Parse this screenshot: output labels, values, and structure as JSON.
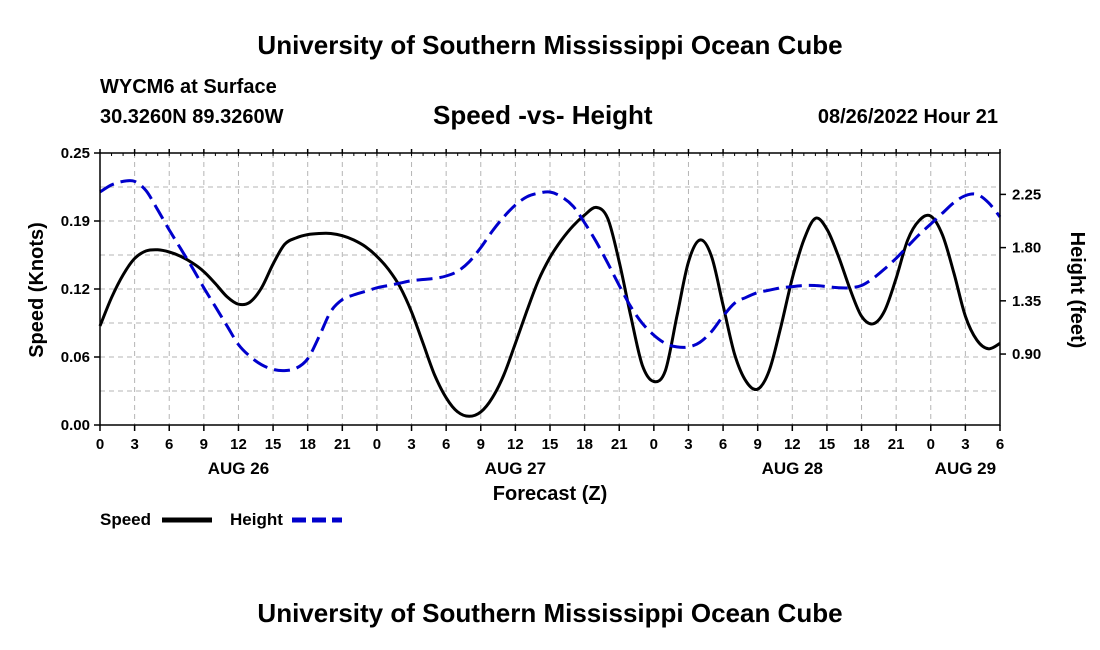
{
  "header": {
    "title": "University of Southern Mississippi Ocean Cube",
    "station": "WYCM6 at Surface",
    "coordinates": "30.3260N  89.3260W",
    "timestamp": "08/26/2022 Hour 21"
  },
  "footer": {
    "title": "University of Southern Mississippi Ocean Cube"
  },
  "chart_data": {
    "type": "line",
    "title": "Speed -vs- Height",
    "xlabel": "Forecast (Z)",
    "ylabel_left": "Speed (Knots)",
    "ylabel_right": "Height (feet)",
    "x_range_hours": [
      0,
      78
    ],
    "x_ticks": [
      "0",
      "3",
      "6",
      "9",
      "12",
      "15",
      "18",
      "21",
      "0",
      "3",
      "6",
      "9",
      "12",
      "15",
      "18",
      "21",
      "0",
      "3",
      "6",
      "9",
      "12",
      "15",
      "18",
      "21",
      "0",
      "3",
      "6"
    ],
    "day_labels": [
      {
        "label": "AUG 26",
        "hour": 12
      },
      {
        "label": "AUG 27",
        "hour": 36
      },
      {
        "label": "AUG 28",
        "hour": 60
      },
      {
        "label": "AUG 29",
        "hour": 75
      }
    ],
    "y_left": {
      "range": [
        0,
        0.25
      ],
      "ticks": [
        "0.00",
        "0.06",
        "0.12",
        "0.19",
        "0.25"
      ]
    },
    "y_right": {
      "range": [
        0.3,
        2.6
      ],
      "ticks": [
        "0.90",
        "1.35",
        "1.80",
        "2.25"
      ],
      "tick_values": [
        0.9,
        1.35,
        1.8,
        2.25
      ]
    },
    "grid": true,
    "legend_position": "bottom-left",
    "colors": {
      "speed": "#000000",
      "height": "#0000cc"
    },
    "series": [
      {
        "name": "Speed",
        "axis": "left",
        "style": "solid",
        "x": [
          0,
          1,
          2,
          3,
          4,
          5,
          6,
          7,
          8,
          9,
          10,
          11,
          12,
          13,
          14,
          15,
          16,
          17,
          18,
          19,
          20,
          21,
          22,
          23,
          24,
          25,
          26,
          27,
          28,
          29,
          30,
          31,
          32,
          33,
          34,
          35,
          36,
          37,
          38,
          39,
          40,
          41,
          42,
          43,
          44,
          45,
          46,
          47,
          48,
          49,
          50,
          51,
          52,
          53,
          54,
          55,
          56,
          57,
          58,
          59,
          60,
          61,
          62,
          63,
          64,
          65,
          66,
          67,
          68,
          69,
          70,
          71,
          72,
          73,
          74,
          75,
          76,
          77,
          78
        ],
        "values": [
          0.091,
          0.117,
          0.138,
          0.153,
          0.16,
          0.161,
          0.159,
          0.155,
          0.149,
          0.141,
          0.13,
          0.118,
          0.111,
          0.113,
          0.126,
          0.148,
          0.166,
          0.172,
          0.175,
          0.176,
          0.176,
          0.174,
          0.17,
          0.164,
          0.155,
          0.143,
          0.127,
          0.104,
          0.075,
          0.046,
          0.025,
          0.012,
          0.008,
          0.012,
          0.025,
          0.046,
          0.075,
          0.105,
          0.133,
          0.154,
          0.17,
          0.183,
          0.193,
          0.2,
          0.19,
          0.15,
          0.1,
          0.055,
          0.04,
          0.05,
          0.1,
          0.15,
          0.17,
          0.155,
          0.11,
          0.065,
          0.04,
          0.033,
          0.05,
          0.09,
          0.135,
          0.17,
          0.19,
          0.18,
          0.155,
          0.125,
          0.1,
          0.093,
          0.105,
          0.135,
          0.17,
          0.188,
          0.192,
          0.175,
          0.14,
          0.1,
          0.078,
          0.07,
          0.075
        ]
      },
      {
        "name": "Height",
        "axis": "right",
        "style": "dashed",
        "x": [
          0,
          1,
          2,
          3,
          4,
          5,
          6,
          7,
          8,
          9,
          10,
          11,
          12,
          13,
          14,
          15,
          16,
          17,
          18,
          19,
          20,
          21,
          22,
          23,
          24,
          25,
          26,
          27,
          28,
          29,
          30,
          31,
          32,
          33,
          34,
          35,
          36,
          37,
          38,
          39,
          40,
          41,
          42,
          43,
          44,
          45,
          46,
          47,
          48,
          49,
          50,
          51,
          52,
          53,
          54,
          55,
          56,
          57,
          58,
          59,
          60,
          61,
          62,
          63,
          64,
          65,
          66,
          67,
          68,
          69,
          70,
          71,
          72,
          73,
          74,
          75,
          76,
          77,
          78
        ],
        "values": [
          2.27,
          2.33,
          2.36,
          2.36,
          2.28,
          2.12,
          1.95,
          1.79,
          1.63,
          1.46,
          1.3,
          1.14,
          0.98,
          0.88,
          0.81,
          0.77,
          0.76,
          0.78,
          0.86,
          1.05,
          1.26,
          1.36,
          1.4,
          1.43,
          1.46,
          1.48,
          1.5,
          1.52,
          1.53,
          1.54,
          1.56,
          1.6,
          1.68,
          1.8,
          1.94,
          2.06,
          2.16,
          2.23,
          2.26,
          2.27,
          2.23,
          2.15,
          2.01,
          1.85,
          1.67,
          1.48,
          1.3,
          1.16,
          1.06,
          0.99,
          0.96,
          0.96,
          1.0,
          1.09,
          1.22,
          1.33,
          1.38,
          1.42,
          1.44,
          1.46,
          1.47,
          1.48,
          1.48,
          1.47,
          1.46,
          1.46,
          1.48,
          1.54,
          1.62,
          1.71,
          1.81,
          1.91,
          2.0,
          2.09,
          2.18,
          2.24,
          2.25,
          2.18,
          2.06
        ]
      }
    ]
  }
}
